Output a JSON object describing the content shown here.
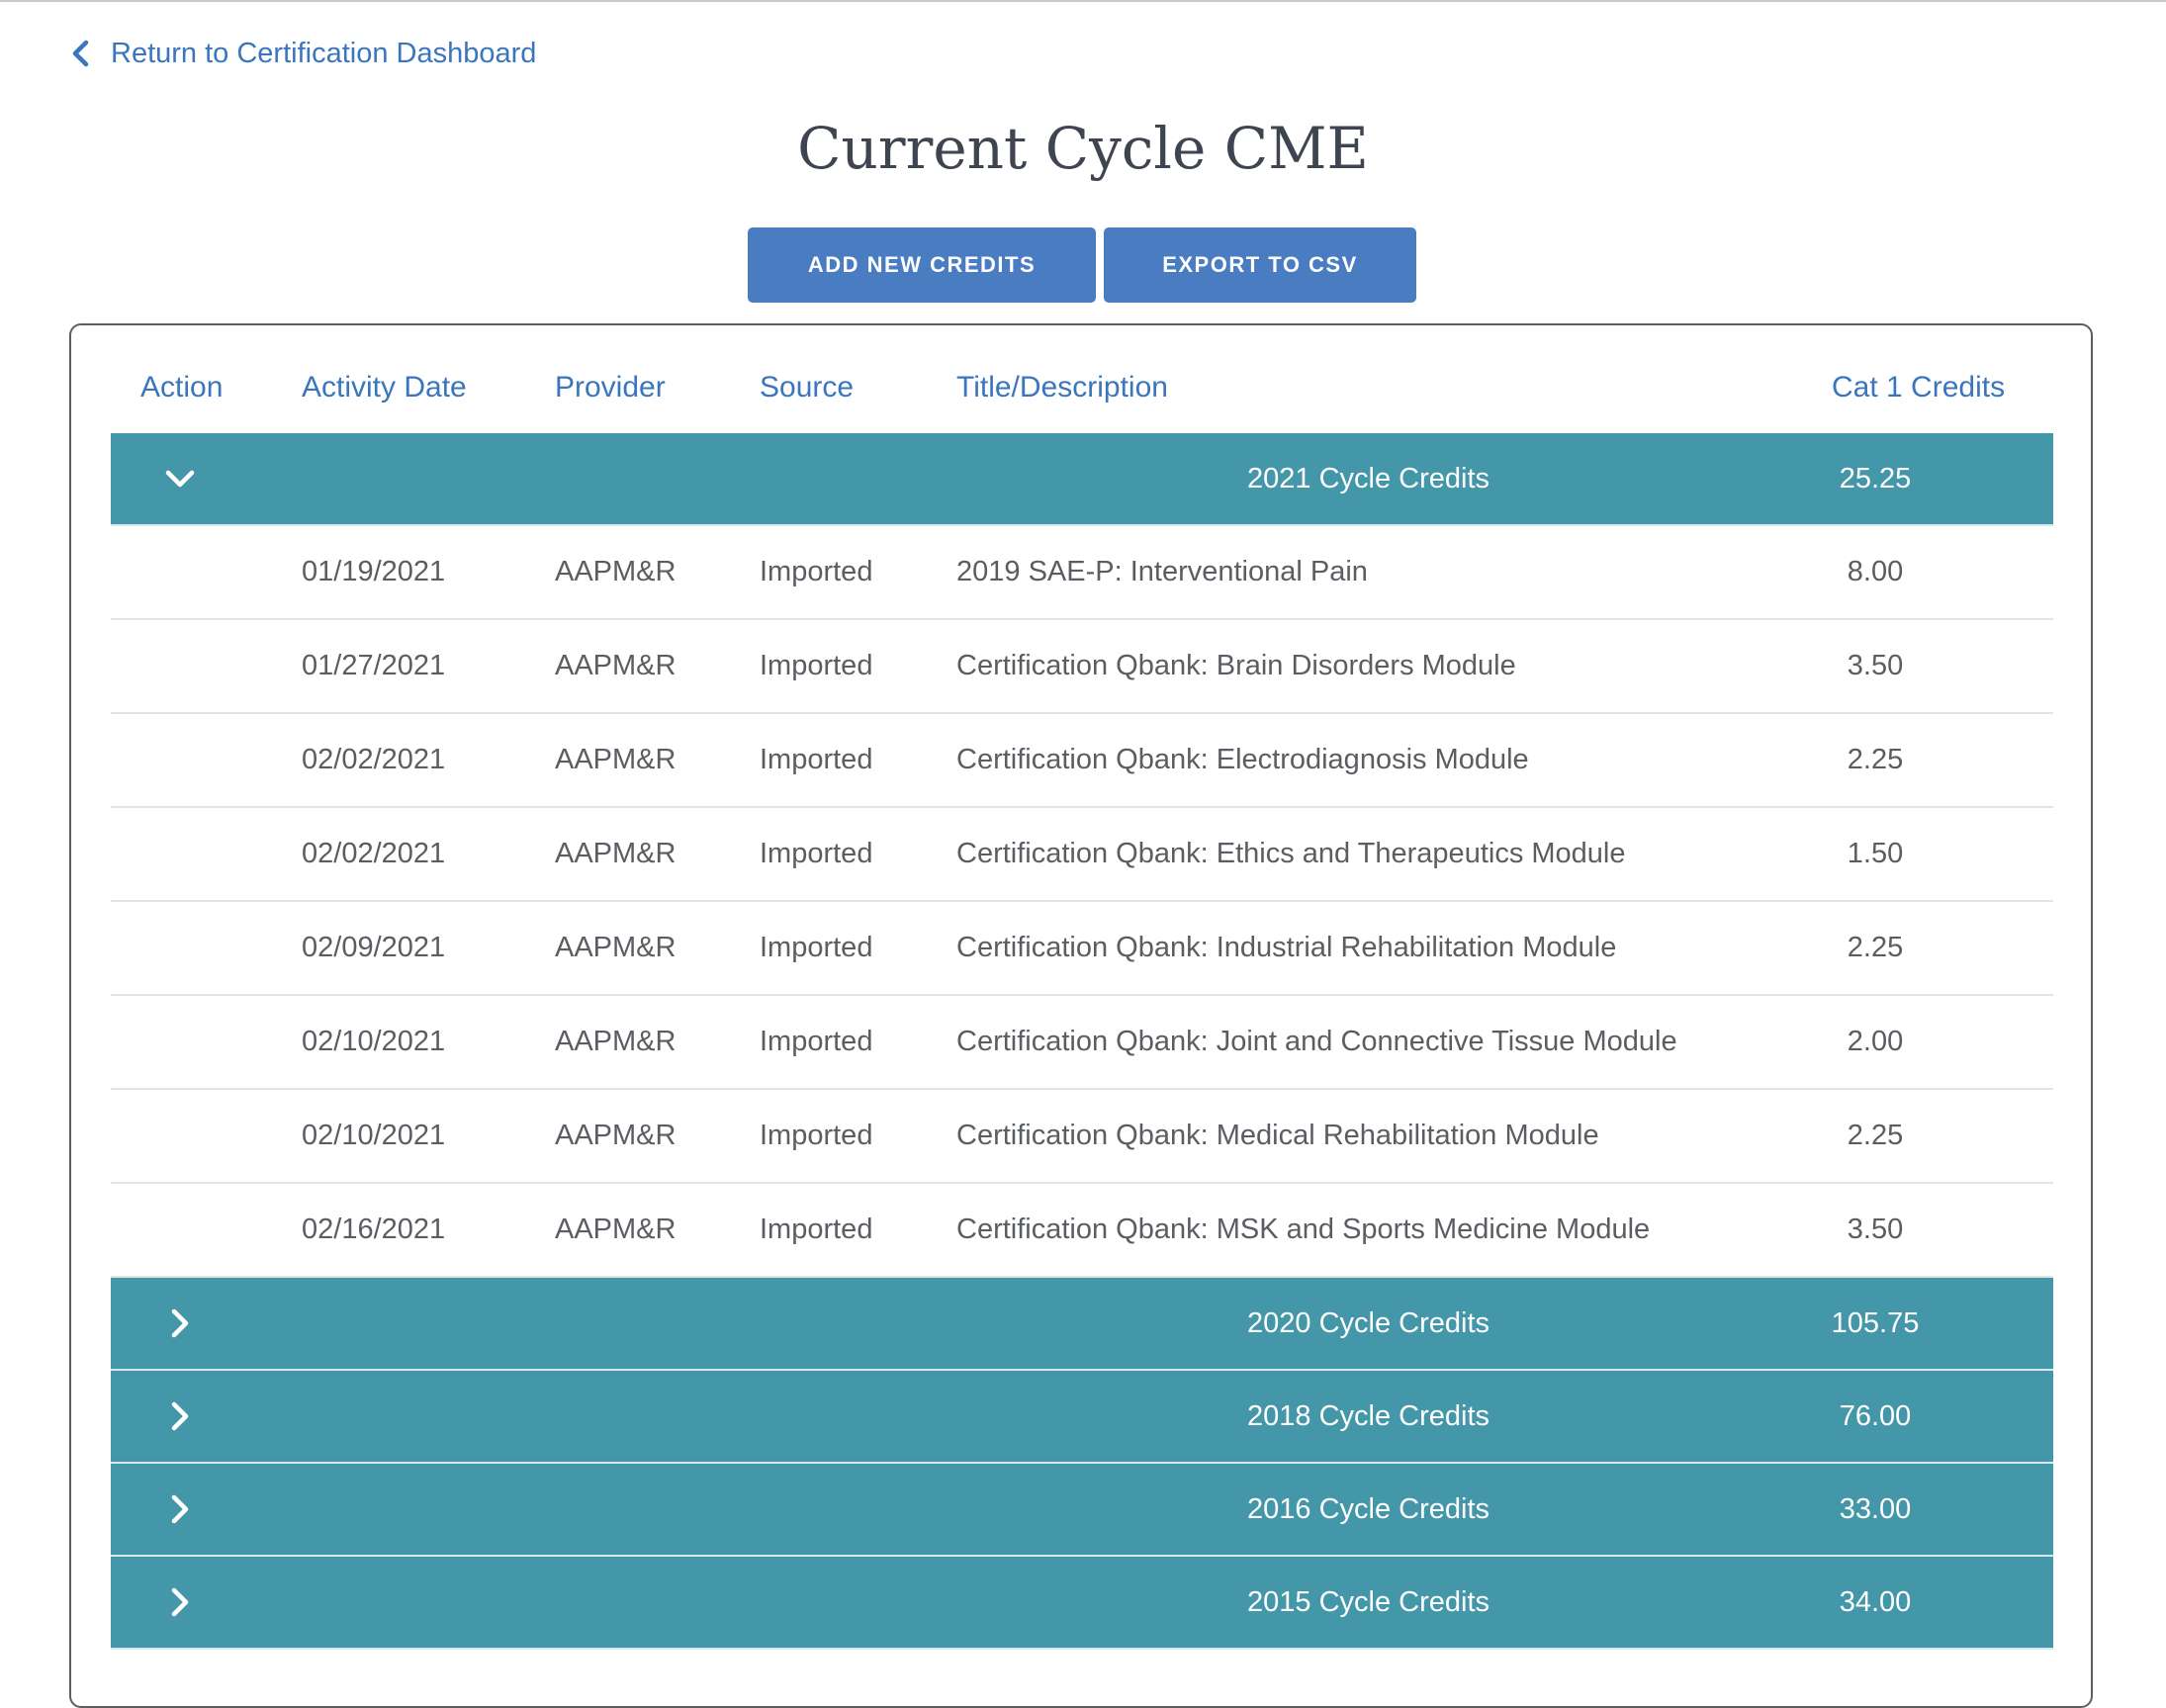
{
  "nav": {
    "back_label": "Return to Certification Dashboard"
  },
  "page": {
    "title": "Current Cycle CME"
  },
  "toolbar": {
    "add_label": "ADD NEW CREDITS",
    "export_label": "EXPORT TO CSV"
  },
  "columns": {
    "action": "Action",
    "activity_date": "Activity Date",
    "provider": "Provider",
    "source": "Source",
    "title": "Title/Description",
    "credits": "Cat 1 Credits"
  },
  "colors": {
    "accent": "#3a76bd",
    "button": "#4a7cc1",
    "group_row": "#4497a8"
  },
  "groups": [
    {
      "label": "2021 Cycle Credits",
      "total": "25.25",
      "expanded": true,
      "icon": "chevron-down-icon",
      "rows": [
        {
          "date": "01/19/2021",
          "provider": "AAPM&R",
          "source": "Imported",
          "title": "2019 SAE-P: Interventional Pain",
          "credits": "8.00"
        },
        {
          "date": "01/27/2021",
          "provider": "AAPM&R",
          "source": "Imported",
          "title": "Certification Qbank: Brain Disorders Module",
          "credits": "3.50"
        },
        {
          "date": "02/02/2021",
          "provider": "AAPM&R",
          "source": "Imported",
          "title": "Certification Qbank: Electrodiagnosis Module",
          "credits": "2.25"
        },
        {
          "date": "02/02/2021",
          "provider": "AAPM&R",
          "source": "Imported",
          "title": "Certification Qbank: Ethics and Therapeutics Module",
          "credits": "1.50"
        },
        {
          "date": "02/09/2021",
          "provider": "AAPM&R",
          "source": "Imported",
          "title": "Certification Qbank: Industrial Rehabilitation Module",
          "credits": "2.25"
        },
        {
          "date": "02/10/2021",
          "provider": "AAPM&R",
          "source": "Imported",
          "title": "Certification Qbank: Joint and Connective Tissue Module",
          "credits": "2.00"
        },
        {
          "date": "02/10/2021",
          "provider": "AAPM&R",
          "source": "Imported",
          "title": "Certification Qbank: Medical Rehabilitation Module",
          "credits": "2.25"
        },
        {
          "date": "02/16/2021",
          "provider": "AAPM&R",
          "source": "Imported",
          "title": "Certification Qbank: MSK and Sports Medicine Module",
          "credits": "3.50"
        }
      ]
    },
    {
      "label": "2020 Cycle Credits",
      "total": "105.75",
      "expanded": false,
      "icon": "chevron-right-icon",
      "rows": []
    },
    {
      "label": "2018 Cycle Credits",
      "total": "76.00",
      "expanded": false,
      "icon": "chevron-right-icon",
      "rows": []
    },
    {
      "label": "2016 Cycle Credits",
      "total": "33.00",
      "expanded": false,
      "icon": "chevron-right-icon",
      "rows": []
    },
    {
      "label": "2015 Cycle Credits",
      "total": "34.00",
      "expanded": false,
      "icon": "chevron-right-icon",
      "rows": []
    }
  ]
}
